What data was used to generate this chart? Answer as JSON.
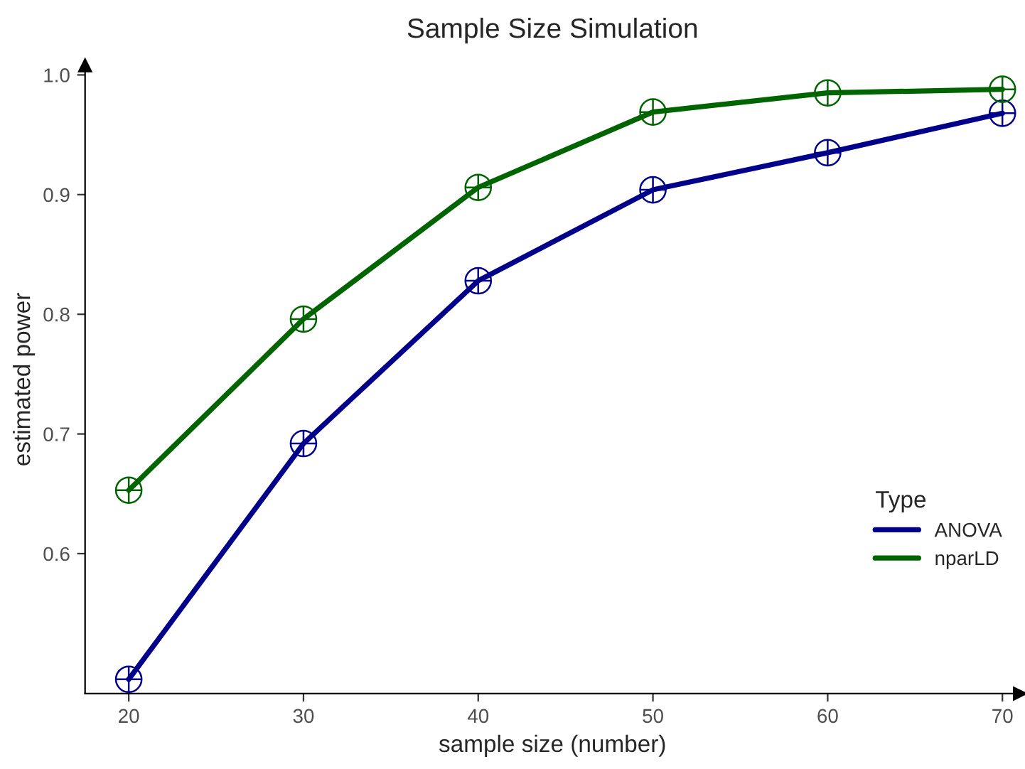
{
  "chart_data": {
    "type": "line",
    "title": "Sample Size Simulation",
    "xlabel": "sample size (number)",
    "ylabel": "estimated power",
    "legend_title": "Type",
    "x": [
      20,
      30,
      40,
      50,
      60,
      70
    ],
    "series": [
      {
        "name": "ANOVA",
        "color": "#00008b",
        "values": [
          0.495,
          0.692,
          0.828,
          0.904,
          0.935,
          0.968
        ]
      },
      {
        "name": "nparLD",
        "color": "#006400",
        "values": [
          0.653,
          0.796,
          0.906,
          0.969,
          0.985,
          0.988
        ]
      }
    ],
    "xlim": [
      17.5,
      71
    ],
    "ylim": [
      0.483,
      1.008
    ],
    "xticks": [
      20,
      30,
      40,
      50,
      60,
      70
    ],
    "yticks": [
      0.6,
      0.7,
      0.8,
      0.9,
      {
        "value": 1.0,
        "label": "1.0"
      }
    ],
    "grid": false,
    "legend": "bottom right",
    "marker": "circle",
    "line_style": "solid"
  }
}
